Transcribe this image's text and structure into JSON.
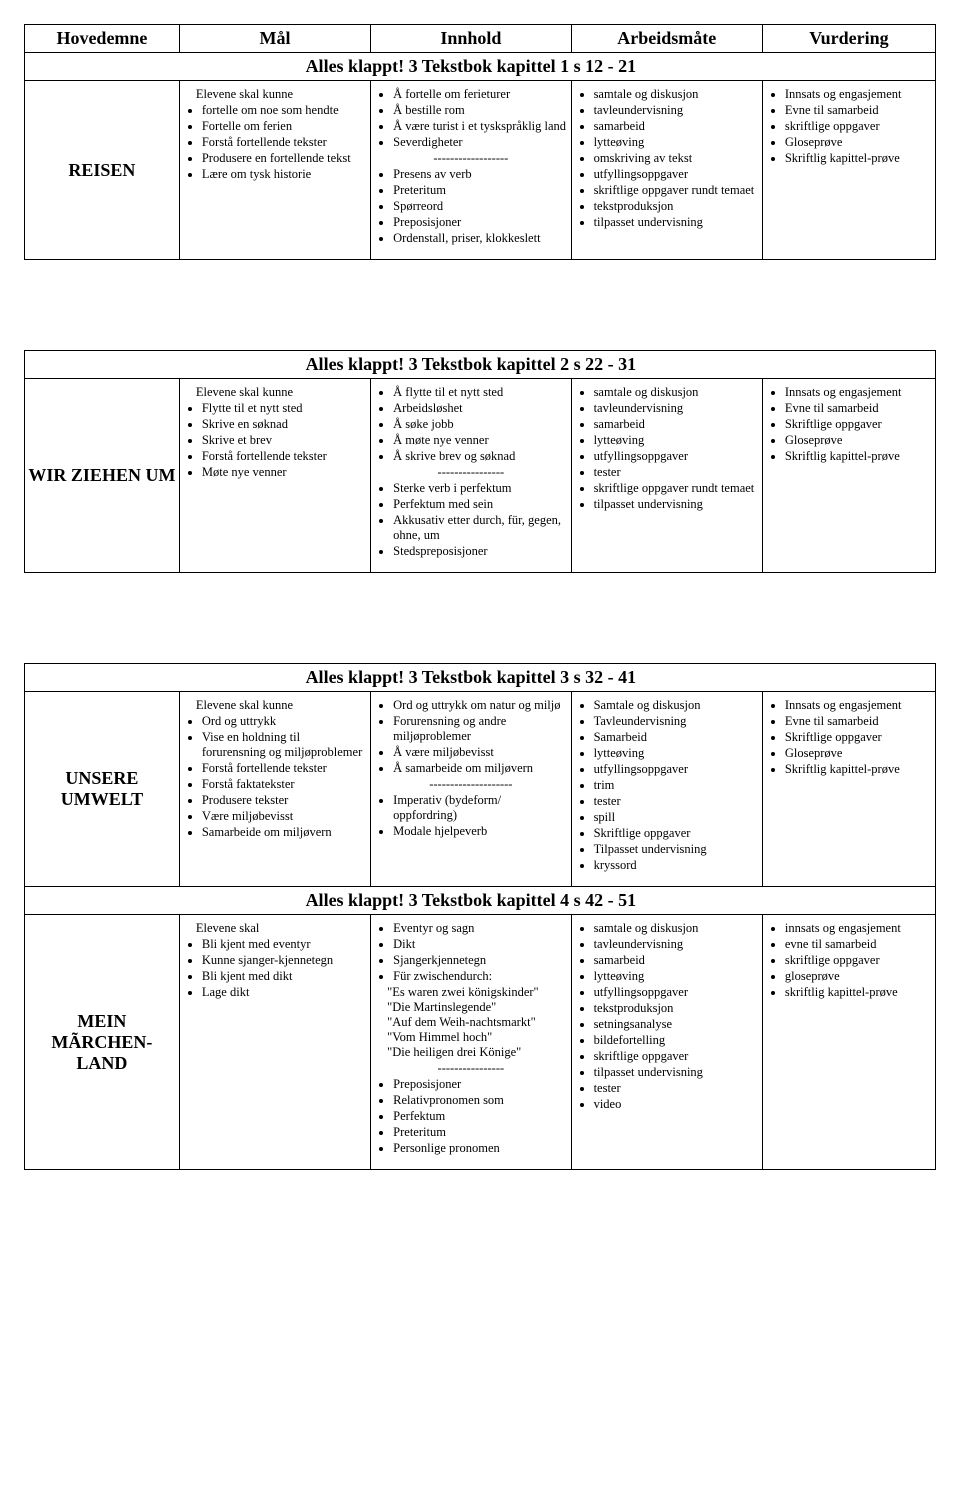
{
  "headers": [
    "Hovedemne",
    "Mål",
    "Innhold",
    "Arbeidsmåte",
    "Vurdering"
  ],
  "book": "Alles klappt!",
  "sections": [
    {
      "chapter": "3 Tekstbok kapittel 1 s 12 - 21",
      "topic": "REISEN",
      "maal_lead": "Elevene skal kunne",
      "maal": [
        "fortelle om noe som hendte",
        "Fortelle om ferien",
        "Forstå fortellende tekster",
        "Produsere en fortellende tekst",
        "Lære om tysk historie"
      ],
      "innhold_a": [
        "Å fortelle om ferieturer",
        "Å bestille rom",
        "Å være turist i et tyskspråklig land",
        "Severdigheter"
      ],
      "innhold_b": [
        "Presens av verb",
        "Preteritum",
        "Spørreord",
        "Preposisjoner",
        "Ordenstall, priser, klokkeslett"
      ],
      "arbeid": [
        "samtale og diskusjon",
        "tavleundervisning",
        "samarbeid",
        "lytteøving",
        "omskriving av tekst",
        "utfyllingsoppgaver",
        "skriftlige oppgaver rundt temaet",
        "tekstproduksjon",
        "tilpasset undervisning"
      ],
      "vurdering": [
        "Innsats og engasjement",
        "Evne til samarbeid",
        "skriftlige oppgaver",
        "Gloseprøve",
        "Skriftlig kapittel-prøve"
      ]
    },
    {
      "chapter": "3 Tekstbok kapittel 2 s 22 - 31",
      "topic": "WIR ZIEHEN UM",
      "maal_lead": "Elevene skal kunne",
      "maal": [
        "Flytte til et nytt sted",
        "Skrive en søknad",
        "Skrive et brev",
        "Forstå fortellende tekster",
        "Møte nye venner"
      ],
      "innhold_a": [
        "Å flytte til et nytt sted",
        "Arbeidsløshet",
        "Å søke jobb",
        "Å møte nye venner",
        "Å skrive brev og søknad"
      ],
      "innhold_b": [
        "Sterke verb i perfektum",
        "Perfektum med sein",
        "Akkusativ etter durch, für, gegen, ohne, um",
        "Stedspreposisjoner"
      ],
      "arbeid": [
        "samtale og diskusjon",
        "tavleundervisning",
        "samarbeid",
        "lytteøving",
        "utfyllingsoppgaver",
        "tester",
        "skriftlige oppgaver rundt temaet",
        "tilpasset undervisning"
      ],
      "vurdering": [
        "Innsats og engasjement",
        "Evne til samarbeid",
        "Skriftlige oppgaver",
        "Gloseprøve",
        "Skriftlig kapittel-prøve"
      ]
    },
    {
      "chapter": "3 Tekstbok kapittel 3 s 32 - 41",
      "topic": "UNSERE UMWELT",
      "maal_lead": "Elevene skal kunne",
      "maal": [
        "Ord og uttrykk",
        "Vise en holdning til forurensning og miljøproblemer",
        "Forstå fortellende tekster",
        "Forstå faktatekster",
        "Produsere tekster",
        "Være miljøbevisst",
        "Samarbeide om miljøvern"
      ],
      "innhold_a": [
        "Ord og uttrykk om natur og miljø",
        "Forurensning og andre miljøproblemer",
        "Å være miljøbevisst",
        "Å samarbeide om miljøvern"
      ],
      "innhold_b": [
        "Imperativ (bydeform/ oppfordring)",
        "Modale hjelpeverb"
      ],
      "arbeid": [
        "Samtale og diskusjon",
        "Tavleundervisning",
        "Samarbeid",
        "lytteøving",
        "utfyllingsoppgaver",
        "trim",
        "tester",
        "spill",
        "Skriftlige oppgaver",
        "Tilpasset undervisning",
        "kryssord"
      ],
      "vurdering": [
        "Innsats og engasjement",
        "Evne til samarbeid",
        "Skriftlige oppgaver",
        "Gloseprøve",
        "Skriftlig kapittel-prøve"
      ]
    },
    {
      "chapter": "3 Tekstbok kapittel 4 s 42 - 51",
      "topic": "MEIN MÃRCHEN-LAND",
      "maal_lead": "Elevene skal",
      "maal": [
        "Bli kjent med eventyr",
        "Kunne sjanger-kjennetegn",
        "Bli kjent med dikt",
        "Lage dikt"
      ],
      "innhold_a": [
        "Eventyr og sagn",
        "Dikt",
        "Sjangerkjennetegn",
        "Für zwischendurch:"
      ],
      "innhold_quotes": [
        "\"Es waren zwei königskinder\"",
        "\"Die Martinslegende\"",
        "\"Auf dem Weih-nachtsmarkt\"",
        "\"Vom Himmel hoch\"",
        "\"Die heiligen drei Könige\""
      ],
      "innhold_b": [
        "Preposisjoner",
        "Relativpronomen som",
        "Perfektum",
        "Preteritum",
        "Personlige pronomen"
      ],
      "arbeid": [
        "samtale og diskusjon",
        "tavleundervisning",
        "samarbeid",
        "lytteøving",
        "utfyllingsoppgaver",
        "tekstproduksjon",
        "setningsanalyse",
        "bildefortelling",
        "skriftlige oppgaver",
        "tilpasset undervisning",
        "tester",
        "video"
      ],
      "vurdering": [
        "innsats og engasjement",
        "evne til samarbeid",
        "skriftlige oppgaver",
        "gloseprøve",
        "skriftlig kapittel-prøve"
      ]
    }
  ],
  "separators": {
    "s1": "------------------",
    "s2": "----------------",
    "s3": "--------------------",
    "s4": "----------------"
  },
  "colw": [
    "17%",
    "21%",
    "22%",
    "21%",
    "19%"
  ]
}
